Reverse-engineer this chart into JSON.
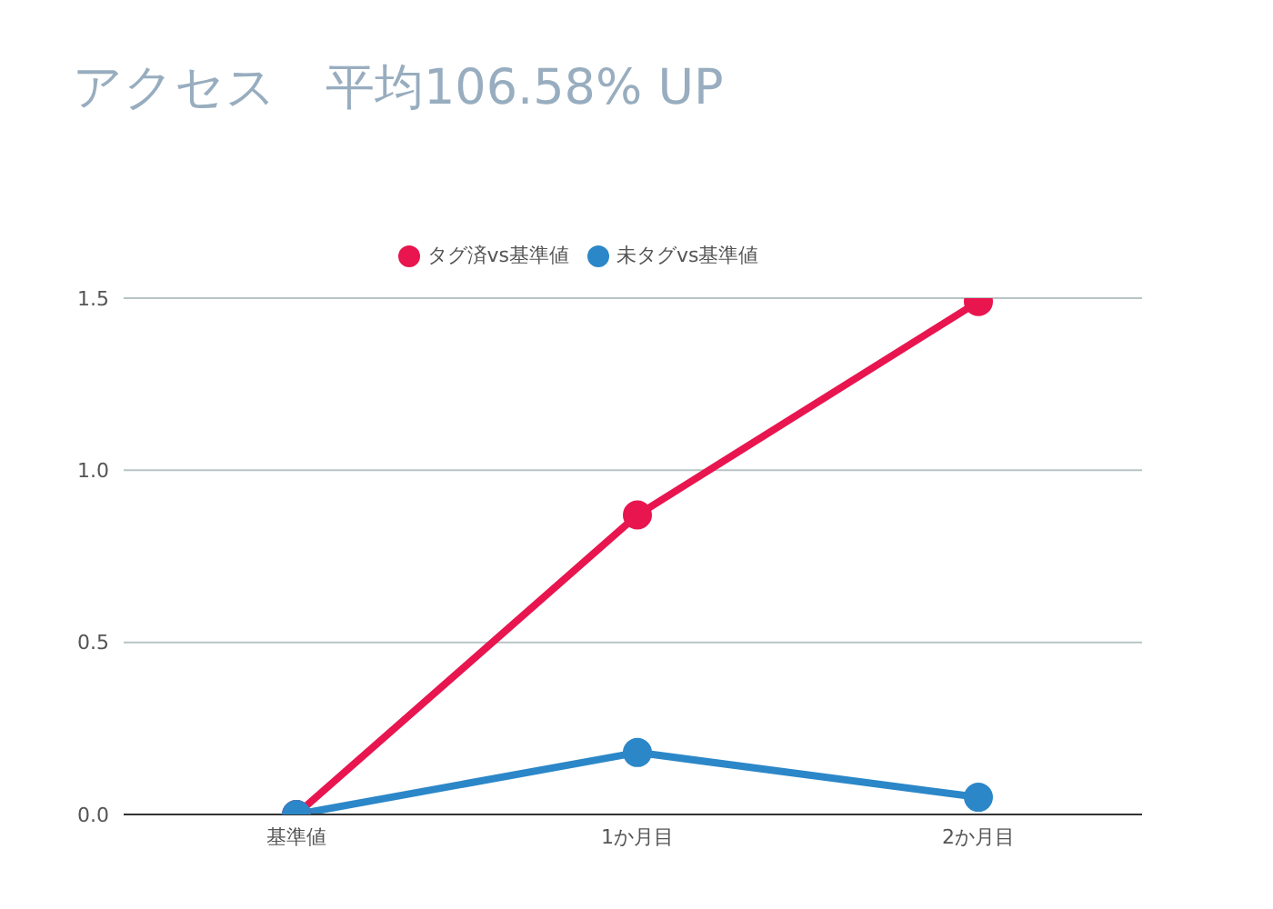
{
  "chart_data": {
    "type": "line",
    "title": "アクセス　平均106.58% UP",
    "categories": [
      "基準値",
      "1か月目",
      "2か月目"
    ],
    "series": [
      {
        "name": "タグ済vs基準値",
        "color": "#e8154f",
        "values": [
          0,
          0.87,
          1.49
        ]
      },
      {
        "name": "未タグvs基準値",
        "color": "#2b87c8",
        "values": [
          0,
          0.18,
          0.05
        ]
      }
    ],
    "ylim": [
      0,
      1.5
    ],
    "yticks": [
      {
        "value": 0,
        "label": "0.0"
      },
      {
        "value": 0.5,
        "label": "0.5"
      },
      {
        "value": 1,
        "label": "1.0"
      },
      {
        "value": 1.5,
        "label": "1.5"
      }
    ],
    "grid": "y",
    "legend": "top",
    "marker": "circle",
    "line_style": "solid"
  }
}
